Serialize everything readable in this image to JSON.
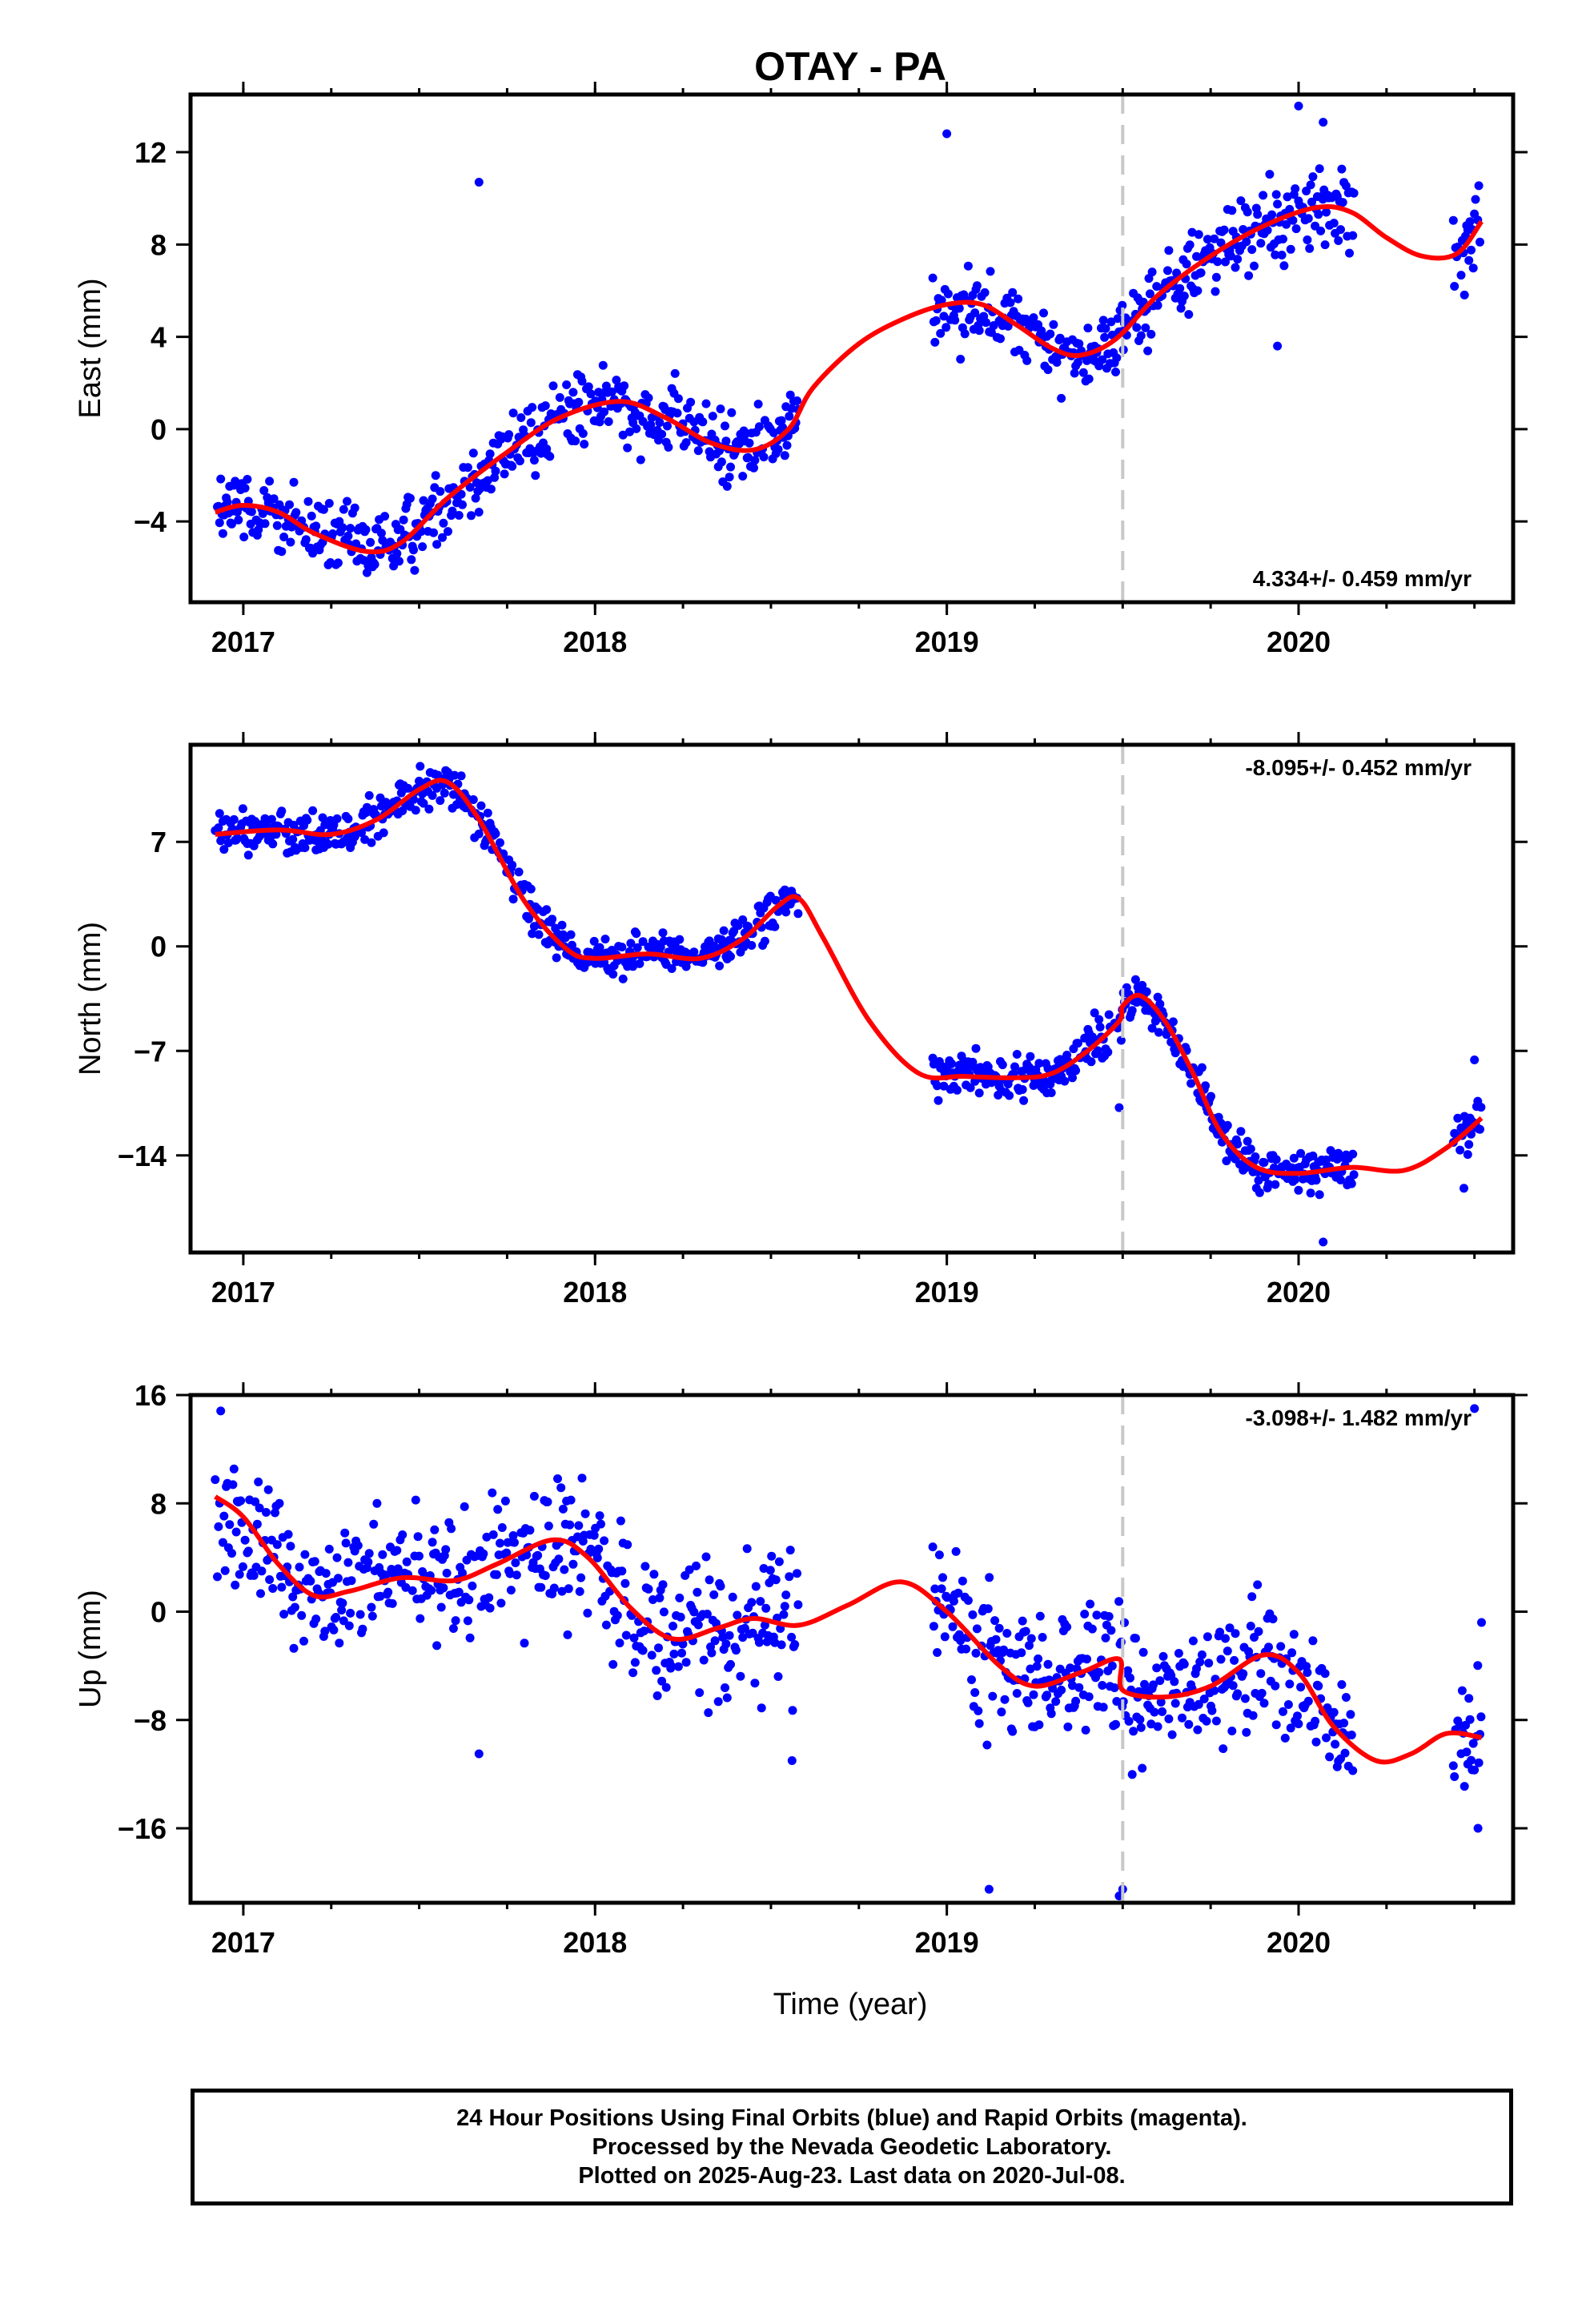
{
  "title": "OTAY - PA",
  "xlabel": "Time (year)",
  "caption": {
    "line1": "24 Hour Positions Using Final Orbits (blue) and Rapid Orbits (magenta).",
    "line2": "Processed by the Nevada Geodetic Laboratory.",
    "line3": "Plotted on 2025-Aug-23. Last data on 2020-Jul-08."
  },
  "colors": {
    "points": "#0000ff",
    "fit": "#ff0000",
    "event_line": "#c8c8c8",
    "frame": "#000000"
  },
  "chart_data": [
    {
      "type": "scatter",
      "name": "east",
      "ylabel": "East (mm)",
      "xlim": [
        2016.85,
        2020.61
      ],
      "ylim": [
        -7.5,
        14.5
      ],
      "xticks": [
        2017,
        2018,
        2019,
        2020
      ],
      "yticks": [
        -4,
        0,
        4,
        8,
        12
      ],
      "event_line_x": 2019.5,
      "rate_text": "4.334+/- 0.459 mm/yr",
      "rate_position": "bottom-right",
      "noise": 1.0,
      "data_ranges": [
        [
          2016.92,
          2018.58
        ],
        [
          2018.96,
          2020.16
        ],
        [
          2020.44,
          2020.52
        ]
      ],
      "fit": [
        [
          2016.92,
          -3.6
        ],
        [
          2017.0,
          -3.3
        ],
        [
          2017.1,
          -3.6
        ],
        [
          2017.2,
          -4.5
        ],
        [
          2017.35,
          -5.3
        ],
        [
          2017.45,
          -4.9
        ],
        [
          2017.58,
          -3.0
        ],
        [
          2017.75,
          -1.0
        ],
        [
          2017.9,
          0.5
        ],
        [
          2018.07,
          1.2
        ],
        [
          2018.2,
          0.5
        ],
        [
          2018.33,
          -0.6
        ],
        [
          2018.45,
          -0.9
        ],
        [
          2018.55,
          0.0
        ],
        [
          2018.62,
          1.8
        ],
        [
          2018.75,
          3.7
        ],
        [
          2018.88,
          4.8
        ],
        [
          2019.0,
          5.4
        ],
        [
          2019.1,
          5.4
        ],
        [
          2019.2,
          4.5
        ],
        [
          2019.3,
          3.5
        ],
        [
          2019.38,
          3.2
        ],
        [
          2019.48,
          3.9
        ],
        [
          2019.6,
          5.8
        ],
        [
          2019.75,
          7.5
        ],
        [
          2019.9,
          8.8
        ],
        [
          2020.05,
          9.6
        ],
        [
          2020.15,
          9.4
        ],
        [
          2020.25,
          8.3
        ],
        [
          2020.35,
          7.5
        ],
        [
          2020.45,
          7.6
        ],
        [
          2020.52,
          9.0
        ]
      ],
      "outliers": [
        [
          2017.67,
          10.7
        ],
        [
          2019.0,
          12.8
        ],
        [
          2019.94,
          3.6
        ],
        [
          2020.0,
          14.0
        ],
        [
          2020.07,
          13.3
        ]
      ]
    },
    {
      "type": "scatter",
      "name": "north",
      "ylabel": "North (mm)",
      "xlim": [
        2016.85,
        2020.61
      ],
      "ylim": [
        -20.5,
        13.5
      ],
      "xticks": [
        2017,
        2018,
        2019,
        2020
      ],
      "yticks": [
        -14,
        -7,
        0,
        7
      ],
      "event_line_x": 2019.5,
      "rate_text": "-8.095+/- 0.452 mm/yr",
      "rate_position": "top-right",
      "noise": 0.9,
      "data_ranges": [
        [
          2016.92,
          2018.58
        ],
        [
          2018.96,
          2020.16
        ],
        [
          2020.44,
          2020.52
        ]
      ],
      "fit": [
        [
          2016.92,
          7.5
        ],
        [
          2017.1,
          7.8
        ],
        [
          2017.25,
          7.5
        ],
        [
          2017.38,
          8.5
        ],
        [
          2017.5,
          10.5
        ],
        [
          2017.58,
          11.0
        ],
        [
          2017.67,
          8.5
        ],
        [
          2017.8,
          3.0
        ],
        [
          2017.92,
          -0.2
        ],
        [
          2018.0,
          -0.8
        ],
        [
          2018.15,
          -0.5
        ],
        [
          2018.3,
          -0.8
        ],
        [
          2018.42,
          0.5
        ],
        [
          2018.52,
          2.7
        ],
        [
          2018.58,
          3.2
        ],
        [
          2018.65,
          0.5
        ],
        [
          2018.78,
          -5.0
        ],
        [
          2018.92,
          -8.5
        ],
        [
          2019.05,
          -8.7
        ],
        [
          2019.2,
          -8.8
        ],
        [
          2019.3,
          -8.5
        ],
        [
          2019.4,
          -7.0
        ],
        [
          2019.49,
          -5.0
        ],
        [
          2019.5,
          -4.0
        ],
        [
          2019.55,
          -3.3
        ],
        [
          2019.62,
          -5.0
        ],
        [
          2019.7,
          -8.5
        ],
        [
          2019.78,
          -12.5
        ],
        [
          2019.88,
          -14.8
        ],
        [
          2020.0,
          -15.2
        ],
        [
          2020.15,
          -14.8
        ],
        [
          2020.3,
          -15.0
        ],
        [
          2020.42,
          -13.5
        ],
        [
          2020.52,
          -11.5
        ]
      ],
      "outliers": [
        [
          2019.49,
          -10.8
        ],
        [
          2020.07,
          -19.8
        ],
        [
          2020.5,
          -7.6
        ],
        [
          2020.47,
          -16.2
        ]
      ]
    },
    {
      "type": "scatter",
      "name": "up",
      "ylabel": "Up (mm)",
      "xlim": [
        2016.85,
        2020.61
      ],
      "ylim": [
        -21.5,
        16.0
      ],
      "xticks": [
        2017,
        2018,
        2019,
        2020
      ],
      "yticks": [
        -16,
        -8,
        0,
        8,
        16
      ],
      "event_line_x": 2019.5,
      "rate_text": "-3.098+/- 1.482 mm/yr",
      "rate_position": "top-right",
      "noise": 3.0,
      "data_ranges": [
        [
          2016.92,
          2018.58
        ],
        [
          2018.96,
          2020.16
        ],
        [
          2020.44,
          2020.52
        ]
      ],
      "fit": [
        [
          2016.92,
          8.5
        ],
        [
          2017.0,
          7.0
        ],
        [
          2017.1,
          3.5
        ],
        [
          2017.2,
          1.2
        ],
        [
          2017.3,
          1.5
        ],
        [
          2017.45,
          2.5
        ],
        [
          2017.6,
          2.3
        ],
        [
          2017.72,
          3.5
        ],
        [
          2017.88,
          5.3
        ],
        [
          2017.98,
          4.0
        ],
        [
          2018.1,
          0.3
        ],
        [
          2018.22,
          -2.0
        ],
        [
          2018.35,
          -1.2
        ],
        [
          2018.45,
          -0.5
        ],
        [
          2018.58,
          -1.0
        ],
        [
          2018.72,
          0.5
        ],
        [
          2018.87,
          2.2
        ],
        [
          2019.0,
          0.0
        ],
        [
          2019.15,
          -4.0
        ],
        [
          2019.25,
          -5.5
        ],
        [
          2019.38,
          -4.5
        ],
        [
          2019.49,
          -3.5
        ],
        [
          2019.5,
          -5.8
        ],
        [
          2019.62,
          -6.3
        ],
        [
          2019.75,
          -5.5
        ],
        [
          2019.9,
          -3.2
        ],
        [
          2020.0,
          -4.5
        ],
        [
          2020.1,
          -8.5
        ],
        [
          2020.22,
          -11.0
        ],
        [
          2020.32,
          -10.5
        ],
        [
          2020.42,
          -9.0
        ],
        [
          2020.52,
          -9.3
        ]
      ],
      "outliers": [
        [
          2017.67,
          -10.5
        ],
        [
          2018.56,
          -11.0
        ],
        [
          2019.12,
          -20.5
        ],
        [
          2019.49,
          -21.0
        ],
        [
          2019.5,
          -20.5
        ],
        [
          2020.5,
          15.0
        ],
        [
          2020.52,
          -0.8
        ],
        [
          2020.51,
          -16.0
        ]
      ]
    }
  ]
}
